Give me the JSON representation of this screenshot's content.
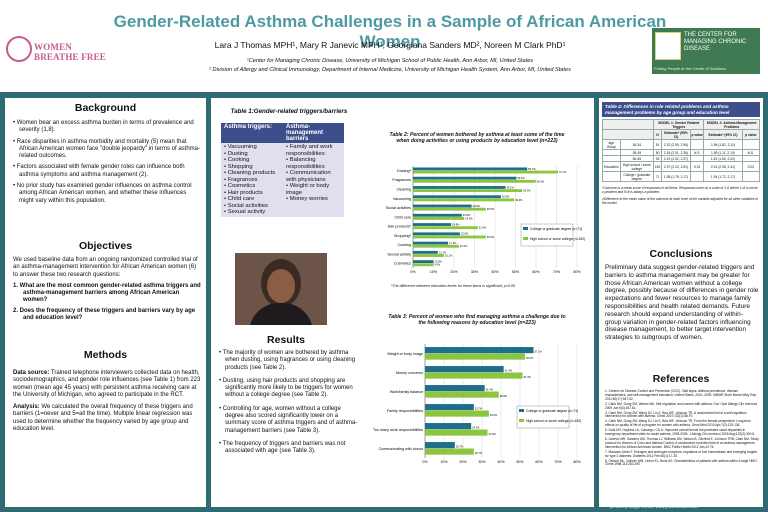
{
  "header": {
    "title": "Gender-Related Asthma Challenges in a Sample of African American Women",
    "authors": "Lara J Thomas MPH¹, Mary R Janevic MPH¹, Georgiana Sanders MD², Noreen M Clark PhD¹",
    "affiliation_1": "¹Center for Managing Chronic Disease, University of Michigan School of Public Health, Ann Arbor, MI, United States",
    "affiliation_2": "² Division of Allergy and Clinical Immunology, Department of Internal Medicine, University of Michigan Health System, Ann Arbor, MI, United States",
    "logo_left_text": "WOMEN BREATHE FREE",
    "logo_right_name": "THE CENTER FOR MANAGING CHRONIC DISEASE",
    "logo_right_tag": "Putting People at the Center of Solutions"
  },
  "background": {
    "heading": "Background",
    "b1": "• Women bear an excess asthma burden in terms of prevalence and severity (1,8).",
    "b2": "• Race disparities in asthma morbidity and mortality (5) mean that African American women face \"double jeopardy\" in terms of asthma-related outcomes.",
    "b3": "• Factors associated with female gender roles can influence both asthma symptoms and asthma management (2).",
    "b4": "• No prior study has examined gender influences on asthma control among African American women, and whether these influences might vary within this population."
  },
  "objectives": {
    "heading": "Objectives",
    "intro": "We used baseline data from an ongoing randomized controlled trial of an asthma-management intervention for African American women (6) to answer these two research questions:",
    "q1": "1.  What are the most common gender-related asthma triggers and asthma-management barriers among African American women?",
    "q2": "2.  Does the frequency of these triggers and barriers vary by age and education level?"
  },
  "methods": {
    "heading": "Methods",
    "source_label": "Data source:",
    "source_text": " Trained telephone interviewers collected data on health, sociodemographics, and gender role influences (see Table 1) from 223 women (mean age 45 years) with persistent asthma receiving care at the University of Michigan, who agreed to participate in the RCT.",
    "analysis_label": "Analysis:",
    "analysis_text": " We calculated the overall frequency of these triggers and barriers (1=never and 5=all the time). Multiple linear regression was used to determine whether the frequency varied by age group and education level."
  },
  "table1": {
    "caption": "Table 1:Gender-related triggers/barriers",
    "col1": "Asthma triggers:",
    "col2": "Asthma-management barriers",
    "triggers": [
      "• Vacuuming",
      "• Dusting",
      "• Cooking",
      "• Shopping",
      "• Cleaning products",
      "• Fragrances",
      "• Cosmetics",
      "• Hair products",
      "• Child care",
      "• Social activities",
      "• Sexual activity"
    ],
    "barriers": [
      "• Family and work responsibilities",
      "• Balancing responsibilities",
      "• Communication with physicians",
      "• Weight or body image",
      "• Money worries"
    ]
  },
  "results": {
    "heading": "Results",
    "r1": "• The majority of women are bothered by asthma when dusting, using fragrances or using cleaning products (see Table 2).",
    "r2": "• Dusting, using hair products and shopping are significantly more likely to be triggers for women without a college degree (see Table 2).",
    "r3": "• Controlling for age, women without a college degree also scored significantly lower on a summary score of asthma triggers and of asthma-management barriers (see Table 3).",
    "r4": "• The frequency of triggers and barriers was not associated with age (see Table 3)."
  },
  "chart_data": [
    {
      "type": "bar",
      "title": "Table 2: Percent of women bothered by asthma at least some of the time when doing activities or using products by education level (n=223)",
      "categories": [
        "Dusting*",
        "Fragrances",
        "Cleaning",
        "Vacuuming",
        "Social activities",
        "Child care",
        "Hair products*",
        "Shopping*",
        "Cooking",
        "Sexual activity",
        "Cosmetics"
      ],
      "series": [
        {
          "name": "College or graduate degree (n=71)",
          "color": "#1f6f8b",
          "values": [
            55.7,
            50.4,
            45.1,
            42.9,
            28.6,
            23.8,
            18.6,
            22.9,
            17.1,
            12.1,
            10.0
          ]
        },
        {
          "name": "High school or some college (n=152)",
          "color": "#8cc63f",
          "values": [
            70.7,
            59.9,
            53.3,
            49.3,
            35.5,
            25.0,
            31.6,
            35.5,
            22.4,
            15.1,
            9.9
          ]
        }
      ],
      "xlim": [
        0,
        80
      ],
      "xticks": [
        "0%",
        "10%",
        "20%",
        "30%",
        "40%",
        "50%",
        "60%",
        "70%",
        "80%"
      ],
      "footnote": "*The difference between education levels for these items is significant, p<0.05"
    },
    {
      "type": "bar",
      "title": "Table 3: Percent of women who find managing asthma a challenge due to the following reasons by education level (n=223)",
      "categories": [
        "Weight or body image",
        "Money concerns",
        "Work/family balance",
        "Family responsibilities",
        "Too many work responsibilities",
        "Communicating with doctor"
      ],
      "series": [
        {
          "name": "College or graduate degree (n=71)",
          "color": "#1f6f8b",
          "values": [
            57.1,
            41.4,
            31.4,
            25.7,
            24.3,
            15.7
          ]
        },
        {
          "name": "High school or some college (n=152)",
          "color": "#8cc63f",
          "values": [
            52.6,
            51.3,
            38.8,
            33.6,
            32.9,
            25.7
          ]
        }
      ],
      "xlim": [
        0,
        80
      ],
      "xticks": [
        "0%",
        "10%",
        "20%",
        "30%",
        "40%",
        "50%",
        "60%",
        "70%",
        "80%"
      ]
    }
  ],
  "table4": {
    "caption": "Table 4: Differences in role related problems and asthma management problems by age group and education level",
    "h1": "MODEL 1: Gender Related Triggers",
    "h2": "MODEL 2: Asthma Management Problems",
    "h_n": "N",
    "h_est": "Estimate* (95% CI)",
    "h_p": "p value",
    "rows": [
      {
        "group": "Age Group",
        "sub": "18-34",
        "n": "51",
        "e1": "2.32 (2.09, 2.55)",
        "p1": "",
        "e2": "1.96 (1.82, 2.11)",
        "p2": ""
      },
      {
        "group": "",
        "sub": "35-49",
        "n": "80",
        "e1": "2.18 (2.01, 2.35)",
        "p1": "N.S.",
        "e2": "1.89 (1.11, 2.10)",
        "p2": "N.S."
      },
      {
        "group": "",
        "sub": "50-65",
        "n": "92",
        "e1": "2.19 (2.02, 2.37)",
        "p1": "",
        "e2": "1.81 (1.60, 2.02)",
        "p2": ""
      },
      {
        "group": "Education",
        "sub": "High school / some college",
        "n": "152",
        "e1": "2.37 (2.22, 2.51)",
        "p1": "0.01",
        "e2": "2.24 (2.08, 2.41)",
        "p2": "0.03"
      },
      {
        "group": "",
        "sub": "College / graduate degree",
        "n": "71",
        "e1": "1.98 (1.79, 2.17)",
        "p1": "",
        "e2": "1.94 (1.72, 2.17)",
        "p2": ""
      }
    ],
    "note1": "*Outcome is a mean score of responses to all items. Responses were on a scale of 1-5 where 1=it is never a problem and 5=it is always a problem.",
    "note2": "‡Difference in the mean value of the outcome at each level of the variable adjusted for all other variables in the model."
  },
  "conclusions": {
    "heading": "Conclusions",
    "text": "Preliminary data suggest gender-related triggers and barriers to asthma management may be greater for those African American women without a college degree, possibly because of differences in gender role expectations and fewer resources to manage family responsibilities and health related demands. Future research should expand understanding of within-group variation in gender-related factors influencing disease management, to better target intervention strategies to subgroups of women."
  },
  "references": {
    "heading": "References",
    "items": [
      "1. Centers for Disease Control and Prevention (CDC). Vital signs: Asthma prevalence, disease characteristics, and self-management education: United States, 2001–2009. MMWR Morb Mortal Wkly Rep. 2011;60(17):547-52.",
      "2. Clark NM, Gong ZM, Valerio MA. Self-regulation and women with asthma. Curr Opin Allergy Clin Immunol 2009 Jun;9(3):257-61.",
      "3. Clark NM, Gong ZM, Wang SJ, Lin X, Bria WF, Johnson TR. A randomized trial of a self-regulation intervention for women with asthma. Chest 2007;132(1):88-97.",
      "4. Clark NM, Gong ZM, Wang SJ, Lin X, Bria WF, Johnson TR. From the female perspective: Long-term effects on quality of life of a program for women with asthma. Gend Med 2010 Apr;7(2):125-136.",
      "5. Gold DR, Hopkins LA, Camargo, CA Jr. Improved overall trends but persistent racial disparities in emergency department visits for acute asthma, 1993-2005. J Allergy Clin Immunol 2008 Aug;122(2):300-5.",
      "6. Janevic MR, Sanders GM, Thomas LJ, Williams DM, Nelson B, Gilchrist E, Johnson TRB, Clark NM. Study protocol for Women of Color and Asthma Control: A randomized controlled trial of an asthma-management intervention for African American women. BMC Public Health 2012 Jan;12:76.",
      "7. Mauvais-Jarvis F. Estrogen and androgen receptors: regulators of fuel homeostasis and emerging targets for type 2 diabetes. Diabetes 2011 Feb;60(1):17-25.",
      "8. Osborn ML, Vollmer WM, Linton KL, Buist AS. Characteristics of patients with asthma within a large HMO. Chest 1998;113:283-290."
    ]
  },
  "footer": {
    "credit": "printed by MegaPrint Inc. www.postersession.com"
  }
}
